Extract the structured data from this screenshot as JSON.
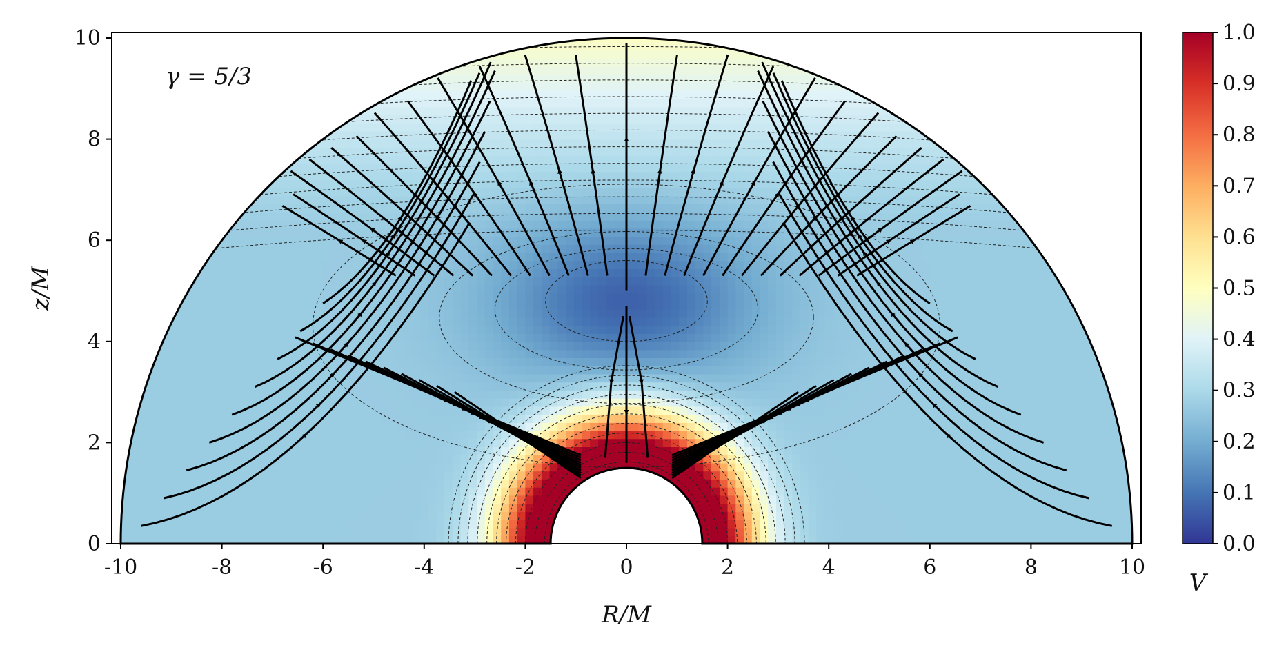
{
  "chart_data": {
    "type": "heatmap",
    "plot_kind": "velocity magnitude field with streamlines and contour lines",
    "annotation": "γ = 5/3",
    "xlabel": "R/M",
    "ylabel": "z/M",
    "colorbar_label": "V",
    "xlim": [
      -10,
      10
    ],
    "ylim": [
      0,
      10
    ],
    "x_ticks": [
      -10,
      -8,
      -6,
      -4,
      -2,
      0,
      2,
      4,
      6,
      8,
      10
    ],
    "y_ticks": [
      0,
      2,
      4,
      6,
      8,
      10
    ],
    "colorbar_ticks": [
      "0.0",
      "0.1",
      "0.2",
      "0.3",
      "0.4",
      "0.5",
      "0.6",
      "0.7",
      "0.8",
      "0.9",
      "1.0"
    ],
    "colorbar_range": [
      0.0,
      1.0
    ],
    "colormap": "RdYlBu_r",
    "colormap_stops": [
      "#313695",
      "#4575b4",
      "#74add1",
      "#abd9e9",
      "#e0f3f8",
      "#ffffbf",
      "#fee090",
      "#fdae61",
      "#f46d43",
      "#d73027",
      "#a50026"
    ],
    "domain": {
      "outer_radius": 10,
      "inner_radius": 1.5
    },
    "stagnation_point": {
      "R": 0,
      "z": 4.8,
      "V": 0.08
    },
    "field_samples": [
      {
        "R": 0,
        "z": 10,
        "V": 0.5
      },
      {
        "R": 0,
        "z": 8,
        "V": 0.35
      },
      {
        "R": 0,
        "z": 6,
        "V": 0.2
      },
      {
        "R": 0,
        "z": 4.8,
        "V": 0.08
      },
      {
        "R": 0,
        "z": 3,
        "V": 0.25
      },
      {
        "R": 0,
        "z": 1.6,
        "V": 0.85
      },
      {
        "R": 1.5,
        "z": 0.3,
        "V": 1.0
      },
      {
        "R": 3,
        "z": 0.5,
        "V": 0.45
      },
      {
        "R": 6,
        "z": 1,
        "V": 0.3
      },
      {
        "R": 9.5,
        "z": 0.5,
        "V": 0.3
      }
    ],
    "grid": false,
    "legend": "colorbar at right"
  }
}
